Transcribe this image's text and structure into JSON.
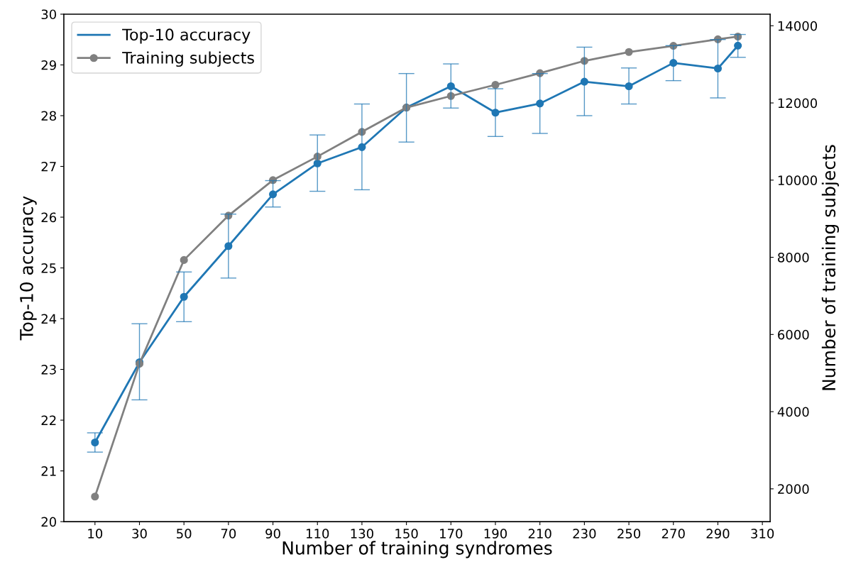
{
  "chart_data": {
    "type": "line",
    "xlabel": "Number of training syndromes",
    "ylabel": "Top-10 accuracy",
    "y2label": "Number of training subjects",
    "x": [
      10,
      30,
      50,
      70,
      90,
      110,
      130,
      150,
      170,
      190,
      210,
      230,
      250,
      270,
      290,
      299
    ],
    "series": [
      {
        "name": "Top-10 accuracy",
        "color": "#1f77b4",
        "values": [
          21.56,
          23.14,
          24.43,
          25.43,
          26.45,
          27.06,
          27.38,
          28.16,
          28.58,
          28.06,
          28.24,
          28.67,
          28.58,
          29.04,
          28.93,
          29.38
        ],
        "errors": [
          [
            21.37,
            21.75
          ],
          [
            22.4,
            23.9
          ],
          [
            23.94,
            24.92
          ],
          [
            24.8,
            26.06
          ],
          [
            26.2,
            26.72
          ],
          [
            26.51,
            27.62
          ],
          [
            26.54,
            28.23
          ],
          [
            27.48,
            28.83
          ],
          [
            28.15,
            29.02
          ],
          [
            27.59,
            28.53
          ],
          [
            27.65,
            28.83
          ],
          [
            28.0,
            29.35
          ],
          [
            28.23,
            28.94
          ],
          [
            28.69,
            29.38
          ],
          [
            28.35,
            29.5
          ],
          [
            29.15,
            29.6
          ]
        ]
      },
      {
        "name": "Training subjects",
        "color": "#808080",
        "axis": "y2",
        "values": [
          1800,
          5240,
          7930,
          9080,
          10000,
          10610,
          11250,
          11880,
          12180,
          12470,
          12770,
          13090,
          13320,
          13480,
          13650,
          13720
        ]
      }
    ],
    "xlim": [
      -4,
      313.5
    ],
    "xticks": [
      10,
      30,
      50,
      70,
      90,
      110,
      130,
      150,
      170,
      190,
      210,
      230,
      250,
      270,
      290,
      310
    ],
    "ylim": [
      20,
      30
    ],
    "yticks": [
      20,
      21,
      22,
      23,
      24,
      25,
      26,
      27,
      28,
      29,
      30
    ],
    "y2lim": [
      1150,
      14300
    ],
    "y2ticks": [
      2000,
      4000,
      6000,
      8000,
      10000,
      12000,
      14000
    ],
    "marker": "circle",
    "line_style": "solid",
    "legend": "top left",
    "grid": false
  }
}
